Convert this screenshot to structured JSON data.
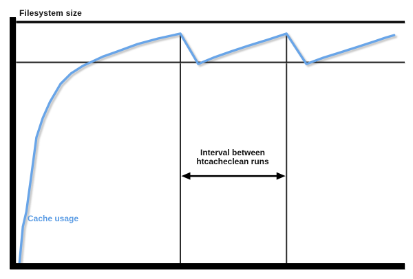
{
  "labels": {
    "filesystem_size": "Filesystem size",
    "cache_usage": "Cache usage",
    "interval_line1": "Interval between",
    "interval_line2": "htcacheclean runs"
  },
  "colors": {
    "background": "#ffffff",
    "axis": "#000000",
    "reference_line": "#1a1a1a",
    "event_line": "#2b2b2b",
    "curve": "#69a5e8",
    "curve_shadow": "#b9b9b9",
    "cache_label_text": "#5b9ce4",
    "annotation_arrow": "#000000"
  },
  "chart_data": {
    "type": "line",
    "title": "",
    "xlabel": "",
    "ylabel": "Filesystem size",
    "axes_numeric_labels": false,
    "units": "relative (no numeric scales shown in image)",
    "x_range": [
      0,
      100
    ],
    "y_range": [
      0,
      100
    ],
    "grid": false,
    "legend_position": "none",
    "series": [
      {
        "name": "Cache usage",
        "color": "#69a5e8",
        "points": [
          [
            0.9,
            0
          ],
          [
            1.8,
            15.6
          ],
          [
            2.7,
            21.8
          ],
          [
            4.1,
            38.2
          ],
          [
            5.3,
            52.4
          ],
          [
            6.9,
            60.3
          ],
          [
            8.8,
            67.1
          ],
          [
            11.5,
            74.5
          ],
          [
            14.2,
            78.8
          ],
          [
            17.2,
            81.9
          ],
          [
            19.5,
            83.6
          ],
          [
            22.5,
            85.8
          ],
          [
            26.0,
            87.8
          ],
          [
            31.3,
            90.9
          ],
          [
            36.6,
            93.2
          ],
          [
            42.3,
            95.2
          ],
          [
            46.9,
            82.7
          ],
          [
            50.8,
            85.3
          ],
          [
            55.2,
            87.8
          ],
          [
            59.6,
            90.1
          ],
          [
            64.6,
            92.6
          ],
          [
            69.6,
            95.2
          ],
          [
            74.7,
            82.7
          ],
          [
            79.1,
            85.3
          ],
          [
            83.5,
            87.5
          ],
          [
            88.0,
            89.8
          ],
          [
            92.4,
            92.1
          ],
          [
            95.0,
            93.5
          ],
          [
            97.3,
            94.6
          ]
        ]
      }
    ],
    "reference_lines": {
      "filesystem_size_line": {
        "y": 100,
        "label": "Filesystem size",
        "thickness": "medium"
      },
      "cache_limit_line": {
        "y": 83.4,
        "label": "",
        "thickness": "thin"
      }
    },
    "event_lines": {
      "x_values": [
        42.3,
        69.6
      ],
      "top_y": 95.2,
      "bottom_y": 0
    },
    "annotation": {
      "text_line1": "Interval between",
      "text_line2": "htcacheclean runs",
      "arrow_from_x": 42.3,
      "arrow_to_x": 69.6,
      "arrow_y": 36.5,
      "arrow_style": "double-headed"
    }
  }
}
